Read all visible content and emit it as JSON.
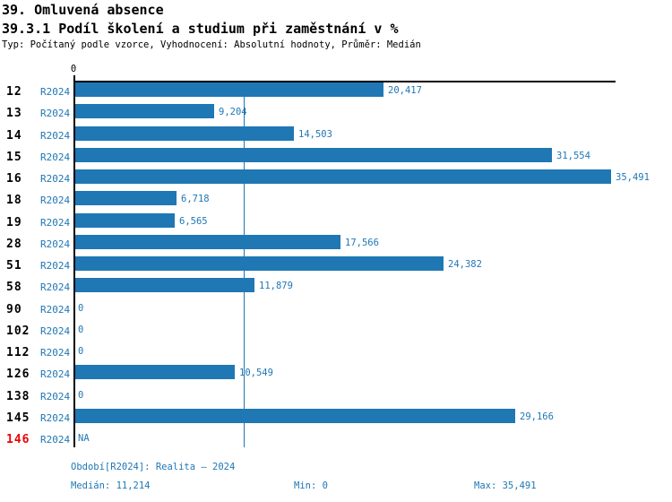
{
  "header": {
    "title": "39. Omluvená absence",
    "subtitle": "39.3.1 Podíl školení a studium při zaměstnání v %",
    "meta": "Typ: Počítaný podle vzorce, Vyhodnocení: Absolutní hodnoty, Průměr: Medián"
  },
  "chart_data": {
    "type": "bar",
    "orientation": "horizontal",
    "title": "39.3.1 Podíl školení a studium při zaměstnání v %",
    "series_name": "R2024",
    "categories": [
      "12",
      "13",
      "14",
      "15",
      "16",
      "18",
      "19",
      "28",
      "51",
      "58",
      "90",
      "102",
      "112",
      "126",
      "138",
      "145",
      "146"
    ],
    "values": [
      20417,
      9204,
      14503,
      31554,
      35491,
      6718,
      6565,
      17566,
      24382,
      11879,
      0,
      0,
      0,
      10549,
      0,
      29166,
      null
    ],
    "value_labels": [
      "20,417",
      "9,204",
      "14,503",
      "31,554",
      "35,491",
      "6,718",
      "6,565",
      "17,566",
      "24,382",
      "11,879",
      "0",
      "0",
      "0",
      "10,549",
      "0",
      "29,166",
      "NA"
    ],
    "highlighted_categories": [
      "146"
    ],
    "axis": {
      "origin_tick_label": "0",
      "xlim": [
        0,
        35491
      ],
      "grid": false
    },
    "median_value": 11214,
    "legend_position": "none"
  },
  "footer": {
    "period": "Období[R2024]: Realita – 2024",
    "median": "Medián: 11,214",
    "min": "Min: 0",
    "max": "Max: 35,491"
  },
  "colors": {
    "bar": "#1f77b4",
    "blue_text": "#1f77b4",
    "highlight_red": "#ee0000",
    "axis_black": "#000000",
    "background": "#ffffff"
  }
}
